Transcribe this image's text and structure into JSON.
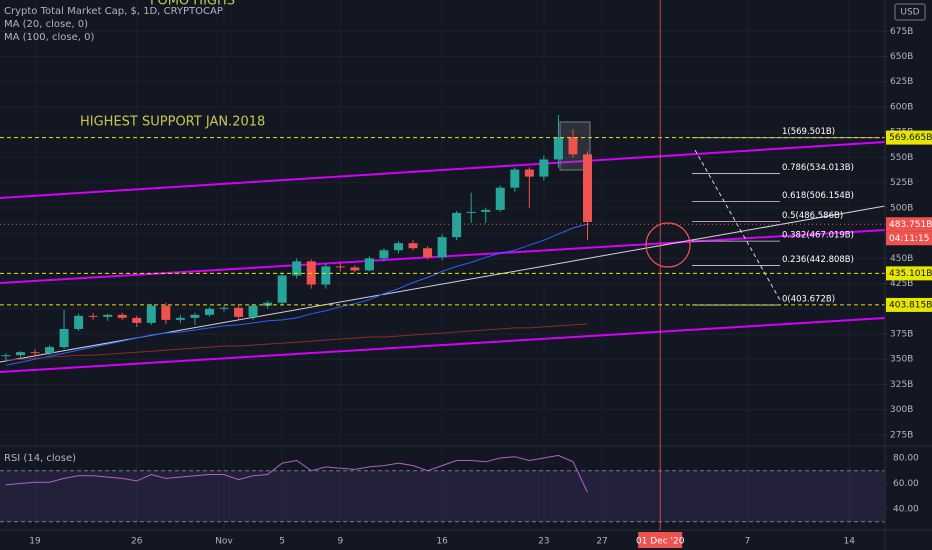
{
  "chart_data": [
    {
      "type": "candlestick",
      "title": "Crypto Total Market Cap, $, 1D, CRYPTOCAP",
      "currency": "USD",
      "categories": [
        null,
        null,
        "19",
        null,
        null,
        null,
        null,
        null,
        null,
        "26",
        null,
        null,
        null,
        null,
        null,
        "Nov",
        null,
        null,
        null,
        "5",
        null,
        null,
        null,
        "9",
        null,
        null,
        null,
        null,
        null,
        null,
        "16",
        null,
        null,
        null,
        null,
        null,
        null,
        "23",
        null,
        null,
        null,
        "27",
        null,
        null,
        null,
        "01 Dec '20",
        null,
        null,
        null,
        null,
        null,
        "7",
        null,
        null,
        null,
        null,
        null,
        null,
        "14",
        null
      ],
      "crosshair_index": 45,
      "open": [
        353,
        354,
        357,
        356,
        362,
        380,
        393,
        392,
        394,
        391,
        386,
        403,
        389,
        391,
        394,
        400,
        401,
        392,
        403,
        406,
        433,
        447,
        424,
        442,
        441,
        438,
        450,
        458,
        465,
        460,
        451,
        471,
        495,
        496,
        498,
        520,
        538,
        531,
        548,
        570,
        553,
        null,
        null,
        null,
        null,
        null,
        null,
        null,
        null,
        null,
        null,
        null,
        null,
        null,
        null,
        null,
        null,
        null,
        null,
        null
      ],
      "high": [
        356,
        358,
        360,
        364,
        399,
        395,
        396,
        395,
        396,
        393,
        405,
        406,
        394,
        396,
        402,
        403,
        403,
        405,
        408,
        436,
        450,
        449,
        445,
        446,
        443,
        452,
        460,
        467,
        468,
        462,
        474,
        497,
        515,
        500,
        522,
        540,
        540,
        552,
        592,
        578,
        556,
        null,
        null,
        null,
        null,
        null,
        null,
        null,
        null,
        null,
        null,
        null,
        null,
        null,
        null,
        null,
        null,
        null,
        null,
        null
      ],
      "low": [
        349,
        351,
        352,
        354,
        360,
        378,
        389,
        388,
        389,
        382,
        384,
        385,
        386,
        384,
        392,
        397,
        389,
        389,
        400,
        404,
        430,
        420,
        420,
        437,
        436,
        437,
        447,
        455,
        458,
        449,
        448,
        468,
        485,
        485,
        496,
        516,
        500,
        527,
        540,
        550,
        468,
        null,
        null,
        null,
        null,
        null,
        null,
        null,
        null,
        null,
        null,
        null,
        null,
        null,
        null,
        null,
        null,
        null,
        null,
        null
      ],
      "close": [
        354,
        357,
        356,
        362,
        380,
        393,
        392,
        394,
        391,
        386,
        403,
        389,
        391,
        394,
        400,
        401,
        392,
        403,
        406,
        433,
        447,
        424,
        442,
        441,
        438,
        450,
        458,
        465,
        460,
        451,
        471,
        495,
        496,
        498,
        520,
        538,
        531,
        548,
        570,
        553,
        486,
        null,
        null,
        null,
        null,
        null,
        null,
        null,
        null,
        null,
        null,
        null,
        null,
        null,
        null,
        null,
        null,
        null,
        null,
        null
      ],
      "up_color": "#26a69a",
      "down_color": "#ef5350",
      "series": [
        {
          "name": "MA (20, close, 0)",
          "color": "#2962ff",
          "values": [
            344,
            347,
            350,
            353,
            356,
            359,
            362,
            365,
            368,
            371,
            374,
            376,
            377,
            379,
            381,
            383,
            384,
            386,
            388,
            389,
            391,
            395,
            398,
            402,
            405,
            409,
            415,
            420,
            426,
            431,
            437,
            442,
            446,
            451,
            455,
            458,
            463,
            468,
            474,
            480,
            484,
            null,
            null,
            null,
            null,
            null,
            null,
            null,
            null,
            null,
            null,
            null,
            null,
            null,
            null,
            null,
            null,
            null,
            null,
            null
          ]
        },
        {
          "name": "MA (100, close, 0)",
          "color": "#8b2b2b",
          "values": [
            349,
            350,
            351,
            352,
            353,
            354,
            354,
            355,
            356,
            357,
            358,
            359,
            360,
            361,
            362,
            363,
            363,
            364,
            365,
            366,
            367,
            368,
            369,
            370,
            371,
            372,
            372,
            373,
            374,
            375,
            376,
            377,
            378,
            379,
            380,
            381,
            381,
            382,
            383,
            384,
            385,
            null,
            null,
            null,
            null,
            null,
            null,
            null,
            null,
            null,
            null,
            null,
            null,
            null,
            null,
            null,
            null,
            null,
            null,
            null
          ]
        }
      ],
      "ylim": [
        265,
        706
      ],
      "yticks": [
        {
          "value": 275,
          "label": "275B"
        },
        {
          "value": 300,
          "label": "300B"
        },
        {
          "value": 325,
          "label": "325B"
        },
        {
          "value": 350,
          "label": "350B"
        },
        {
          "value": 375,
          "label": "375B"
        },
        {
          "value": 400,
          "label": "400B"
        },
        {
          "value": 425,
          "label": "425B"
        },
        {
          "value": 450,
          "label": "450B"
        },
        {
          "value": 475,
          "label": "475B"
        },
        {
          "value": 500,
          "label": "500B"
        },
        {
          "value": 525,
          "label": "525B"
        },
        {
          "value": 550,
          "label": "550B"
        },
        {
          "value": 575,
          "label": "575B"
        },
        {
          "value": 600,
          "label": "600B"
        },
        {
          "value": 625,
          "label": "625B"
        },
        {
          "value": 650,
          "label": "650B"
        },
        {
          "value": 675,
          "label": "675B"
        }
      ],
      "grid": true,
      "price_levels": [
        {
          "value": 569.665,
          "label": "569.665B",
          "color": "#e6e600"
        },
        {
          "value": 435.101,
          "label": "435.101B",
          "color": "#e6e600"
        },
        {
          "value": 403.815,
          "label": "403.815B",
          "color": "#e6e600"
        },
        {
          "value": 483.751,
          "label": "483.751B",
          "color": "#ef5350"
        }
      ],
      "countdown": "04:11:15",
      "fib_levels": [
        {
          "value": 569.501,
          "label": "1(569.501B)"
        },
        {
          "value": 534.013,
          "label": "0.786(534.013B)"
        },
        {
          "value": 506.154,
          "label": "0.618(506.154B)"
        },
        {
          "value": 486.586,
          "label": "0.5(486.586B)"
        },
        {
          "value": 467.019,
          "label": "0.382(467.019B)"
        },
        {
          "value": 442.808,
          "label": "0.236(442.808B)"
        },
        {
          "value": 403.672,
          "label": "0(403.672B)"
        }
      ],
      "annotations": [
        "HIGHEST SUPPORT JAN.2018",
        "FOMO HIGHS"
      ]
    },
    {
      "type": "line",
      "title": "RSI (14, close)",
      "color": "#b45fd0",
      "values": [
        59,
        60,
        61,
        61,
        64,
        66,
        66,
        65,
        64,
        62,
        67,
        64,
        65,
        66,
        67,
        67,
        63,
        66,
        67,
        76,
        78,
        70,
        73,
        72,
        71,
        73,
        74,
        76,
        74,
        70,
        74,
        78,
        78,
        77,
        80,
        81,
        78,
        80,
        82,
        77,
        53,
        null,
        null,
        null,
        null,
        null,
        null,
        null,
        null,
        null,
        null,
        null,
        null,
        null,
        null,
        null,
        null,
        null,
        null,
        null
      ],
      "ylim": [
        23.5,
        88.6
      ],
      "yticks": [
        {
          "value": 40,
          "label": "40.00"
        },
        {
          "value": 60,
          "label": "60.00"
        },
        {
          "value": 80,
          "label": "80.00"
        }
      ],
      "levels": [
        70,
        30
      ]
    }
  ]
}
